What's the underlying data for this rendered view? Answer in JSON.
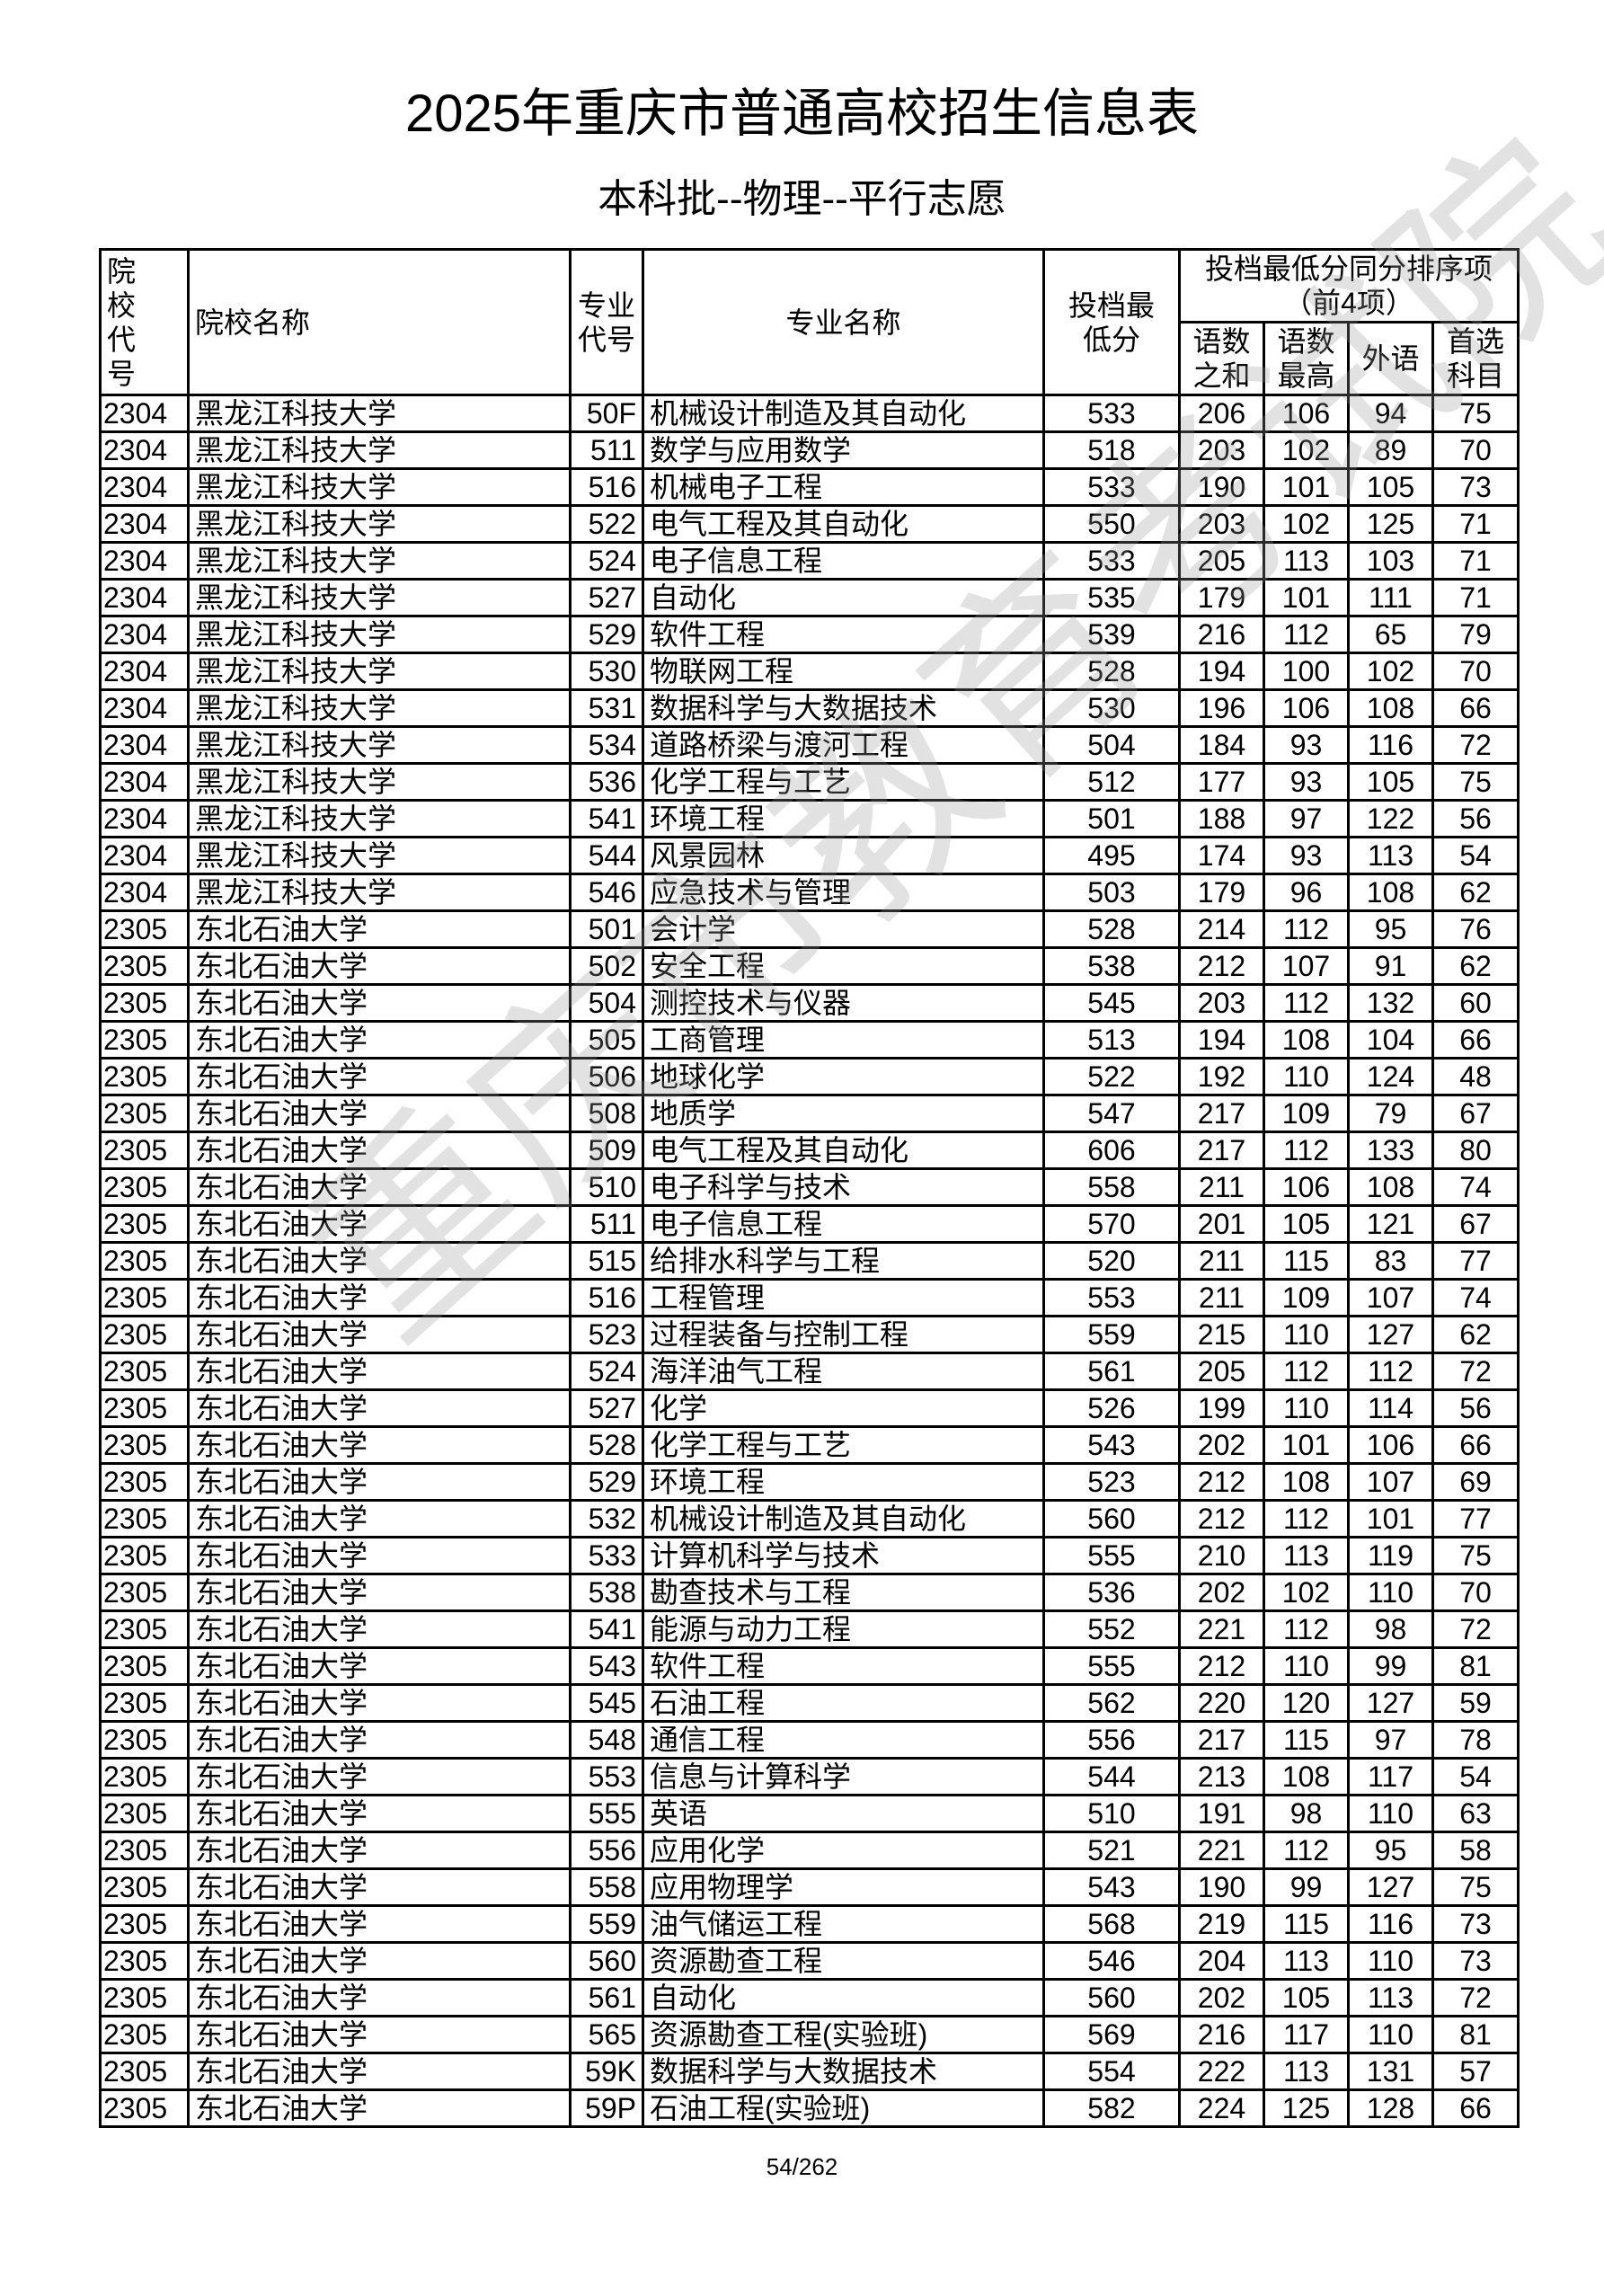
{
  "title": "2025年重庆市普通高校招生信息表",
  "subtitle": "本科批--物理--平行志愿",
  "watermark": "重庆市教育考试院",
  "page_number": "54/262",
  "headers": {
    "school_code": "院校代号",
    "school_name": "院校名称",
    "major_code": "专业代号",
    "major_name": "专业名称",
    "min_score": "投档最低分",
    "tiebreak_group": "投档最低分同分排序项（前4项）",
    "chn_math_sum": "语数之和",
    "chn_math_max": "语数最高",
    "foreign_lang": "外语",
    "first_subject": "首选科目"
  },
  "rows": [
    [
      "2304",
      "黑龙江科技大学",
      "50F",
      "机械设计制造及其自动化",
      "533",
      "206",
      "106",
      "94",
      "75"
    ],
    [
      "2304",
      "黑龙江科技大学",
      "511",
      "数学与应用数学",
      "518",
      "203",
      "102",
      "89",
      "70"
    ],
    [
      "2304",
      "黑龙江科技大学",
      "516",
      "机械电子工程",
      "533",
      "190",
      "101",
      "105",
      "73"
    ],
    [
      "2304",
      "黑龙江科技大学",
      "522",
      "电气工程及其自动化",
      "550",
      "203",
      "102",
      "125",
      "71"
    ],
    [
      "2304",
      "黑龙江科技大学",
      "524",
      "电子信息工程",
      "533",
      "205",
      "113",
      "103",
      "71"
    ],
    [
      "2304",
      "黑龙江科技大学",
      "527",
      "自动化",
      "535",
      "179",
      "101",
      "111",
      "71"
    ],
    [
      "2304",
      "黑龙江科技大学",
      "529",
      "软件工程",
      "539",
      "216",
      "112",
      "65",
      "79"
    ],
    [
      "2304",
      "黑龙江科技大学",
      "530",
      "物联网工程",
      "528",
      "194",
      "100",
      "102",
      "70"
    ],
    [
      "2304",
      "黑龙江科技大学",
      "531",
      "数据科学与大数据技术",
      "530",
      "196",
      "106",
      "108",
      "66"
    ],
    [
      "2304",
      "黑龙江科技大学",
      "534",
      "道路桥梁与渡河工程",
      "504",
      "184",
      "93",
      "116",
      "72"
    ],
    [
      "2304",
      "黑龙江科技大学",
      "536",
      "化学工程与工艺",
      "512",
      "177",
      "93",
      "105",
      "75"
    ],
    [
      "2304",
      "黑龙江科技大学",
      "541",
      "环境工程",
      "501",
      "188",
      "97",
      "122",
      "56"
    ],
    [
      "2304",
      "黑龙江科技大学",
      "544",
      "风景园林",
      "495",
      "174",
      "93",
      "113",
      "54"
    ],
    [
      "2304",
      "黑龙江科技大学",
      "546",
      "应急技术与管理",
      "503",
      "179",
      "96",
      "108",
      "62"
    ],
    [
      "2305",
      "东北石油大学",
      "501",
      "会计学",
      "528",
      "214",
      "112",
      "95",
      "76"
    ],
    [
      "2305",
      "东北石油大学",
      "502",
      "安全工程",
      "538",
      "212",
      "107",
      "91",
      "62"
    ],
    [
      "2305",
      "东北石油大学",
      "504",
      "测控技术与仪器",
      "545",
      "203",
      "112",
      "132",
      "60"
    ],
    [
      "2305",
      "东北石油大学",
      "505",
      "工商管理",
      "513",
      "194",
      "108",
      "104",
      "66"
    ],
    [
      "2305",
      "东北石油大学",
      "506",
      "地球化学",
      "522",
      "192",
      "110",
      "124",
      "48"
    ],
    [
      "2305",
      "东北石油大学",
      "508",
      "地质学",
      "547",
      "217",
      "109",
      "79",
      "67"
    ],
    [
      "2305",
      "东北石油大学",
      "509",
      "电气工程及其自动化",
      "606",
      "217",
      "112",
      "133",
      "80"
    ],
    [
      "2305",
      "东北石油大学",
      "510",
      "电子科学与技术",
      "558",
      "211",
      "106",
      "108",
      "74"
    ],
    [
      "2305",
      "东北石油大学",
      "511",
      "电子信息工程",
      "570",
      "201",
      "105",
      "121",
      "67"
    ],
    [
      "2305",
      "东北石油大学",
      "515",
      "给排水科学与工程",
      "520",
      "211",
      "115",
      "83",
      "77"
    ],
    [
      "2305",
      "东北石油大学",
      "516",
      "工程管理",
      "553",
      "211",
      "109",
      "107",
      "74"
    ],
    [
      "2305",
      "东北石油大学",
      "523",
      "过程装备与控制工程",
      "559",
      "215",
      "110",
      "127",
      "62"
    ],
    [
      "2305",
      "东北石油大学",
      "524",
      "海洋油气工程",
      "561",
      "205",
      "112",
      "112",
      "72"
    ],
    [
      "2305",
      "东北石油大学",
      "527",
      "化学",
      "526",
      "199",
      "110",
      "114",
      "56"
    ],
    [
      "2305",
      "东北石油大学",
      "528",
      "化学工程与工艺",
      "543",
      "202",
      "101",
      "106",
      "66"
    ],
    [
      "2305",
      "东北石油大学",
      "529",
      "环境工程",
      "523",
      "212",
      "108",
      "107",
      "69"
    ],
    [
      "2305",
      "东北石油大学",
      "532",
      "机械设计制造及其自动化",
      "560",
      "212",
      "112",
      "101",
      "77"
    ],
    [
      "2305",
      "东北石油大学",
      "533",
      "计算机科学与技术",
      "555",
      "210",
      "113",
      "119",
      "75"
    ],
    [
      "2305",
      "东北石油大学",
      "538",
      "勘查技术与工程",
      "536",
      "202",
      "102",
      "110",
      "70"
    ],
    [
      "2305",
      "东北石油大学",
      "541",
      "能源与动力工程",
      "552",
      "221",
      "112",
      "98",
      "72"
    ],
    [
      "2305",
      "东北石油大学",
      "543",
      "软件工程",
      "555",
      "212",
      "110",
      "99",
      "81"
    ],
    [
      "2305",
      "东北石油大学",
      "545",
      "石油工程",
      "562",
      "220",
      "120",
      "127",
      "59"
    ],
    [
      "2305",
      "东北石油大学",
      "548",
      "通信工程",
      "556",
      "217",
      "115",
      "97",
      "78"
    ],
    [
      "2305",
      "东北石油大学",
      "553",
      "信息与计算科学",
      "544",
      "213",
      "108",
      "117",
      "54"
    ],
    [
      "2305",
      "东北石油大学",
      "555",
      "英语",
      "510",
      "191",
      "98",
      "110",
      "63"
    ],
    [
      "2305",
      "东北石油大学",
      "556",
      "应用化学",
      "521",
      "221",
      "112",
      "95",
      "58"
    ],
    [
      "2305",
      "东北石油大学",
      "558",
      "应用物理学",
      "543",
      "190",
      "99",
      "127",
      "75"
    ],
    [
      "2305",
      "东北石油大学",
      "559",
      "油气储运工程",
      "568",
      "219",
      "115",
      "116",
      "73"
    ],
    [
      "2305",
      "东北石油大学",
      "560",
      "资源勘查工程",
      "546",
      "204",
      "113",
      "110",
      "73"
    ],
    [
      "2305",
      "东北石油大学",
      "561",
      "自动化",
      "560",
      "202",
      "105",
      "113",
      "72"
    ],
    [
      "2305",
      "东北石油大学",
      "565",
      "资源勘查工程(实验班)",
      "569",
      "216",
      "117",
      "110",
      "81"
    ],
    [
      "2305",
      "东北石油大学",
      "59K",
      "数据科学与大数据技术",
      "554",
      "222",
      "113",
      "131",
      "57"
    ],
    [
      "2305",
      "东北石油大学",
      "59P",
      "石油工程(实验班)",
      "582",
      "224",
      "125",
      "128",
      "66"
    ]
  ]
}
